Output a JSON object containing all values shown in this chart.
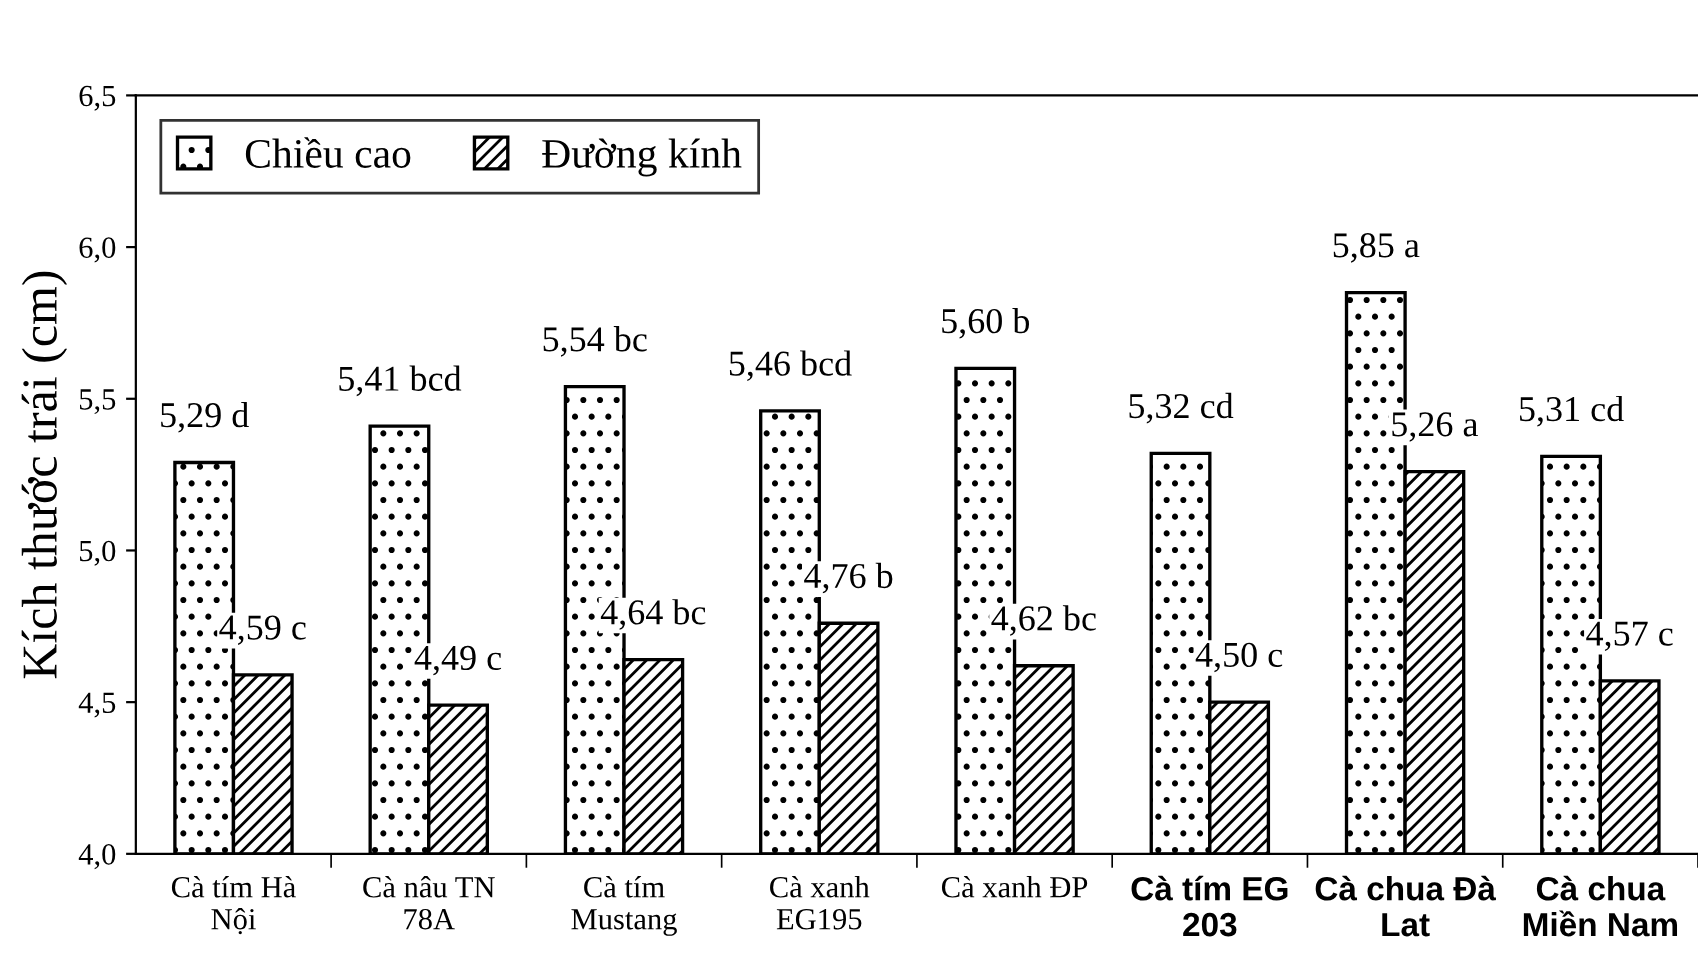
{
  "chart_data": {
    "type": "bar",
    "ylabel": "Kích thước trái (cm)",
    "categories": [
      "Cà tím Hà\nNội",
      "Cà nâu TN\n78A",
      "Cà tím\nMustang",
      "Cà xanh\nEG195",
      "Cà xanh ĐP",
      "Cà tím EG\n203",
      "Cà chua Đà\nLat",
      "Cà chua\nMiền Nam"
    ],
    "series": [
      {
        "name": "Chiều cao",
        "values": [
          5.29,
          5.41,
          5.54,
          5.46,
          5.6,
          5.32,
          5.85,
          5.31
        ],
        "value_labels": [
          "5,29 d",
          "5,41 bcd",
          "5,54 bc",
          "5,46 bcd",
          "5,60 b",
          "5,32 cd",
          "5,85 a",
          "5,31 cd"
        ]
      },
      {
        "name": "Đường kính",
        "values": [
          4.59,
          4.49,
          4.64,
          4.76,
          4.62,
          4.5,
          5.26,
          4.57
        ],
        "value_labels": [
          "4,59 c",
          "4,49 c",
          "4,64 bc",
          "4,76 b",
          "4,62 bc",
          "4,50 c",
          "5,26 a",
          "4,57 c"
        ]
      }
    ],
    "ylim": [
      4.0,
      6.5
    ],
    "yticks": [
      {
        "value": 4.0,
        "label": "4,0"
      },
      {
        "value": 4.5,
        "label": "4,5"
      },
      {
        "value": 5.0,
        "label": "5,0"
      },
      {
        "value": 5.5,
        "label": "5,5"
      },
      {
        "value": 6.0,
        "label": "6,0"
      },
      {
        "value": 6.5,
        "label": "6,5"
      }
    ],
    "grid": false,
    "legend": "top left"
  }
}
